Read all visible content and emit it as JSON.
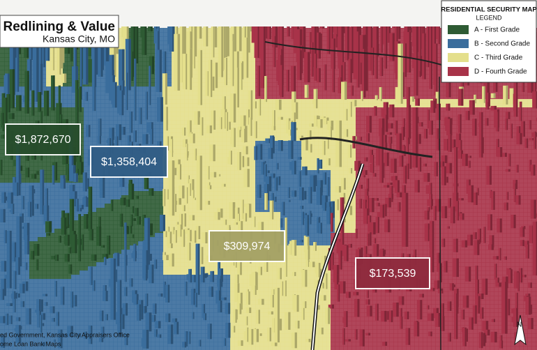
{
  "header": {
    "title": "Redlining & Value",
    "subtitle": "Kansas City, MO"
  },
  "legend": {
    "title": "RESIDENTIAL SECURITY MAP",
    "subtitle": "LEGEND",
    "items": [
      {
        "label": "A - First Grade",
        "color": "#2e5b34"
      },
      {
        "label": "B - Second Grade",
        "color": "#3a6d9c"
      },
      {
        "label": "C - Third Grade",
        "color": "#e4df8c"
      },
      {
        "label": "D - Fourth Grade",
        "color": "#a83349"
      }
    ]
  },
  "value_labels": [
    {
      "text": "$1,872,670",
      "grade": 0
    },
    {
      "text": "$1,358,404",
      "grade": 1
    },
    {
      "text": "$309,974",
      "grade": 2
    },
    {
      "text": "$173,539",
      "grade": 3
    }
  ],
  "source": [
    "ed Government, Kansas City Appraisers Office",
    "ome Loan Bank Maps"
  ],
  "north": "N"
}
